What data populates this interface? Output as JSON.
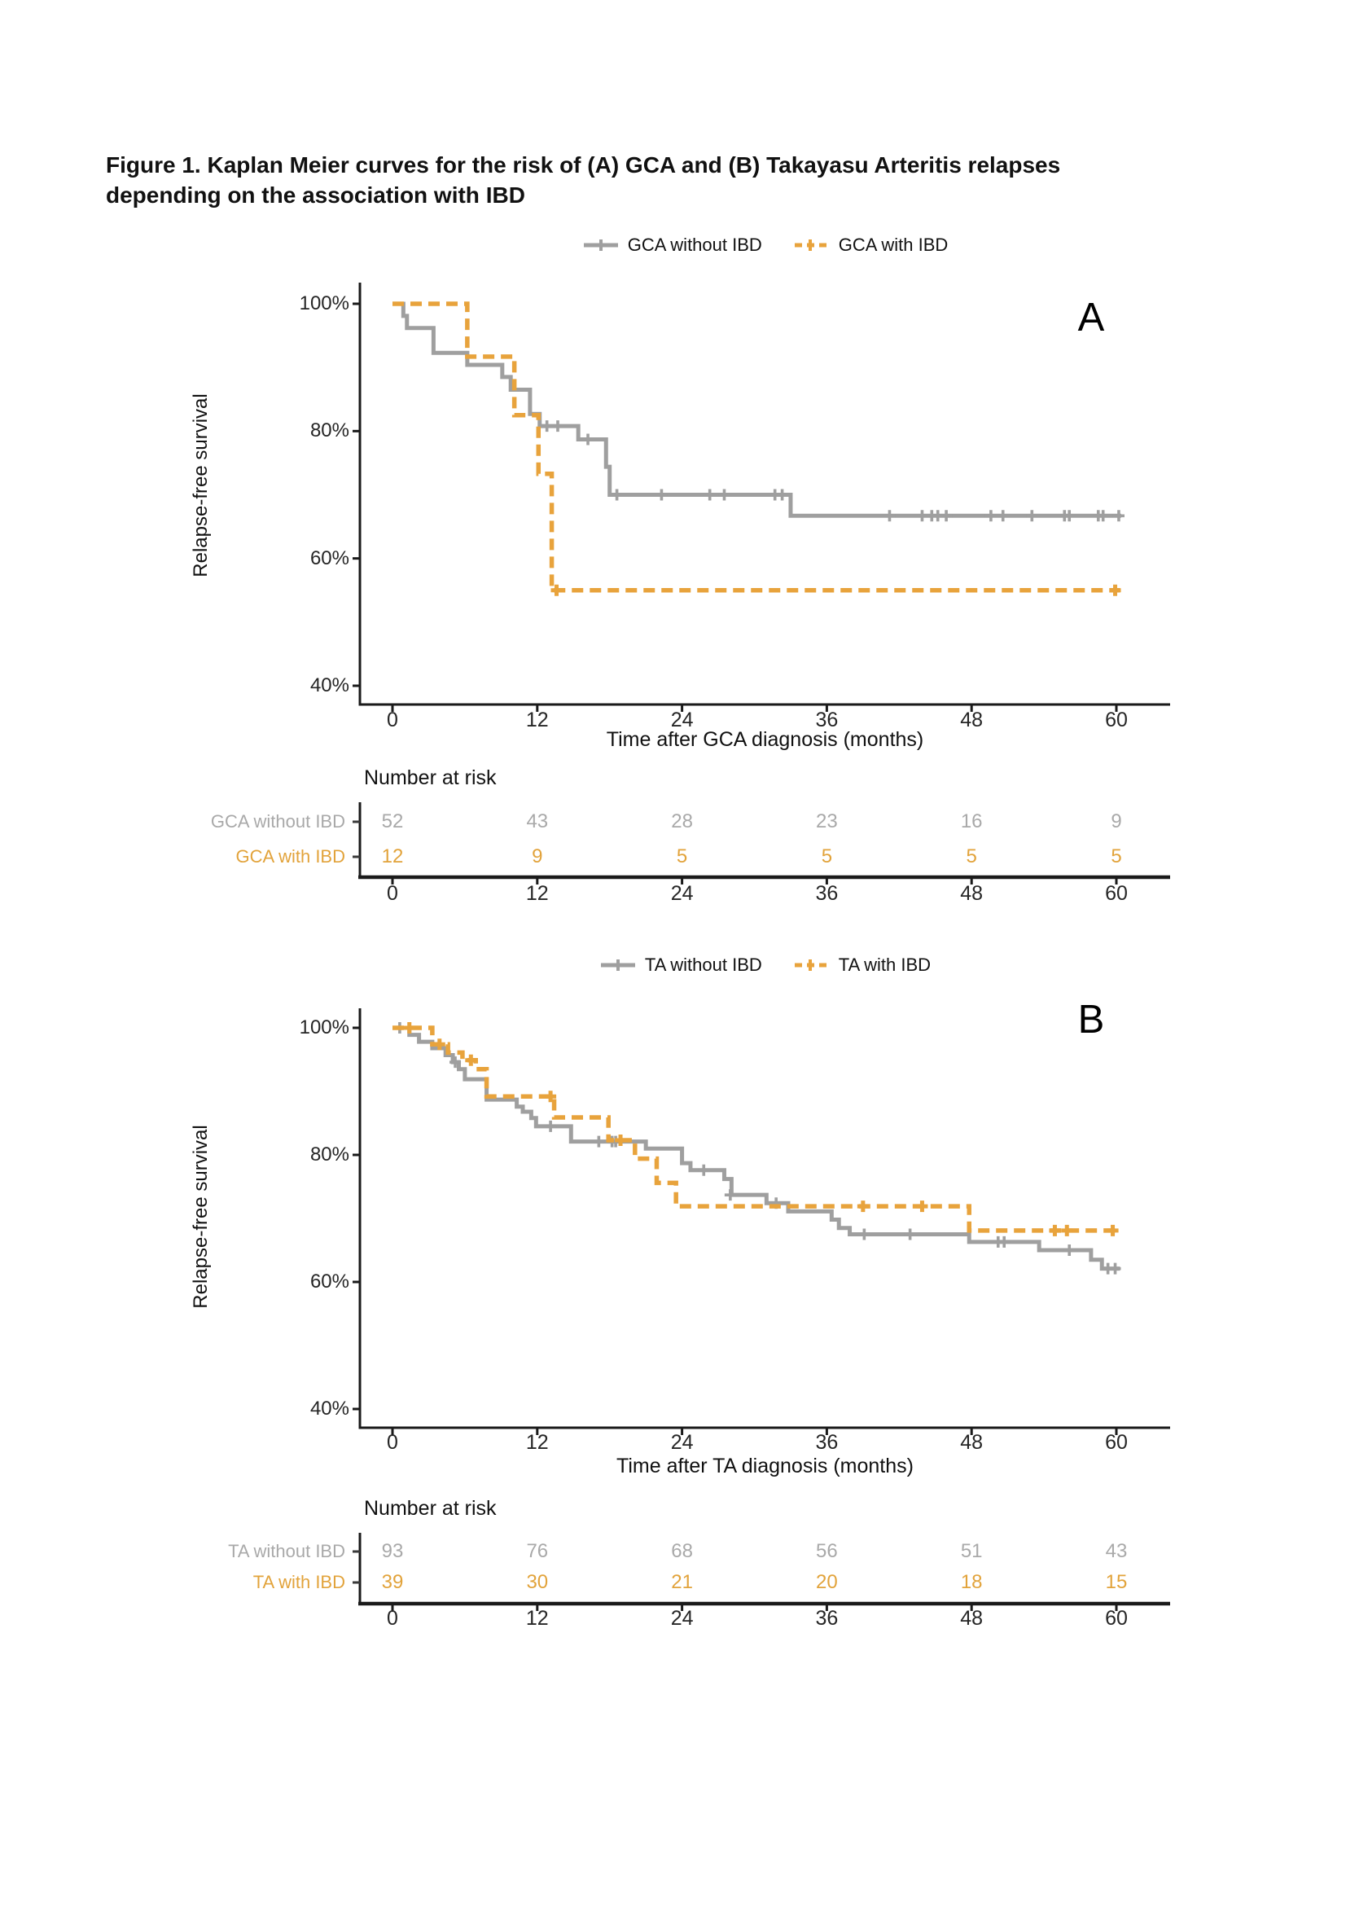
{
  "title": {
    "line1": "Figure 1. Kaplan Meier curves for the risk of (A) GCA and (B) Takayasu Arteritis relapses",
    "line2": "depending on the association with IBD"
  },
  "colors": {
    "axis": "#1a1a1a",
    "tick_label": "#262626",
    "background": "#ffffff",
    "gray_curve": "#9f9f9f",
    "orange_curve": "#E8A33C"
  },
  "chart_data": [
    {
      "type": "line",
      "subtype": "kaplan-meier-step",
      "panel_label": "A",
      "xlabel": "Time after GCA diagnosis (months)",
      "ylabel": "Relapse-free survival",
      "xlim": [
        0,
        60
      ],
      "ylim": [
        40,
        100
      ],
      "grid": false,
      "legend_position": "top",
      "x_ticks": [
        {
          "value": 0,
          "label": "0"
        },
        {
          "value": 12,
          "label": "12"
        },
        {
          "value": 24,
          "label": "24"
        },
        {
          "value": 36,
          "label": "36"
        },
        {
          "value": 48,
          "label": "48"
        },
        {
          "value": 60,
          "label": "60"
        }
      ],
      "y_ticks": [
        {
          "value": 100,
          "label": "100%"
        },
        {
          "value": 80,
          "label": "80%"
        },
        {
          "value": 60,
          "label": "60%"
        },
        {
          "value": 40,
          "label": "40%"
        }
      ],
      "series": [
        {
          "name": "GCA without IBD",
          "color": "#9f9f9f",
          "line": "solid",
          "steps": [
            [
              0,
              100
            ],
            [
              0.9,
              98.1
            ],
            [
              1.2,
              96.2
            ],
            [
              3.4,
              92.3
            ],
            [
              6.2,
              90.4
            ],
            [
              9.1,
              88.5
            ],
            [
              9.8,
              86.5
            ],
            [
              11.4,
              82.7
            ],
            [
              12.2,
              80.8
            ],
            [
              15.4,
              78.7
            ],
            [
              17.7,
              74.4
            ],
            [
              18.0,
              70.0
            ],
            [
              33,
              66.7
            ]
          ],
          "end_x": 60.4,
          "censors": [
            [
              12.8,
              80.8
            ],
            [
              13.7,
              80.8
            ],
            [
              16.2,
              78.7
            ],
            [
              18.6,
              70.0
            ],
            [
              22.3,
              70.0
            ],
            [
              26.3,
              70.0
            ],
            [
              27.5,
              70.0
            ],
            [
              31.7,
              70.0
            ],
            [
              32.3,
              70.0
            ],
            [
              41.2,
              66.7
            ],
            [
              43.9,
              66.7
            ],
            [
              44.7,
              66.7
            ],
            [
              45.2,
              66.7
            ],
            [
              45.9,
              66.7
            ],
            [
              49.6,
              66.7
            ],
            [
              50.6,
              66.7
            ],
            [
              53.0,
              66.7
            ],
            [
              55.7,
              66.7
            ],
            [
              56.1,
              66.7
            ],
            [
              58.5,
              66.7
            ],
            [
              58.9,
              66.7
            ],
            [
              60.2,
              66.7
            ]
          ]
        },
        {
          "name": "GCA with IBD",
          "color": "#E8A33C",
          "line": "dashed",
          "steps": [
            [
              0,
              100
            ],
            [
              6.2,
              91.7
            ],
            [
              10.1,
              82.5
            ],
            [
              12.1,
              73.3
            ],
            [
              13.2,
              55.0
            ]
          ],
          "end_x": 60.3,
          "censors": [
            [
              13.6,
              55.0
            ],
            [
              59.9,
              55.0
            ]
          ]
        }
      ],
      "at_risk": {
        "title": "Number at risk",
        "rows": [
          {
            "label": "GCA without IBD",
            "color": "#a9a9a9",
            "values": [
              "52",
              "43",
              "28",
              "23",
              "16",
              "9"
            ]
          },
          {
            "label": "GCA with IBD",
            "color": "#E2A33B",
            "values": [
              "12",
              "9",
              "5",
              "5",
              "5",
              "5"
            ]
          }
        ]
      }
    },
    {
      "type": "line",
      "subtype": "kaplan-meier-step",
      "panel_label": "B",
      "xlabel": "Time after TA diagnosis (months)",
      "ylabel": "Relapse-free survival",
      "xlim": [
        0,
        60
      ],
      "ylim": [
        40,
        100
      ],
      "grid": false,
      "legend_position": "top",
      "x_ticks": [
        {
          "value": 0,
          "label": "0"
        },
        {
          "value": 12,
          "label": "12"
        },
        {
          "value": 24,
          "label": "24"
        },
        {
          "value": 36,
          "label": "36"
        },
        {
          "value": 48,
          "label": "48"
        },
        {
          "value": 60,
          "label": "60"
        }
      ],
      "y_ticks": [
        {
          "value": 100,
          "label": "100%"
        },
        {
          "value": 80,
          "label": "80%"
        },
        {
          "value": 60,
          "label": "60%"
        },
        {
          "value": 40,
          "label": "40%"
        }
      ],
      "series": [
        {
          "name": "TA without IBD",
          "color": "#9f9f9f",
          "line": "solid",
          "steps": [
            [
              0,
              100
            ],
            [
              1.4,
              98.9
            ],
            [
              2.2,
              97.8
            ],
            [
              3.3,
              96.8
            ],
            [
              4.4,
              95.7
            ],
            [
              5.0,
              94.6
            ],
            [
              5.5,
              93.5
            ],
            [
              6.0,
              91.9
            ],
            [
              7.8,
              88.7
            ],
            [
              10.3,
              87.6
            ],
            [
              10.8,
              86.8
            ],
            [
              11.5,
              85.8
            ],
            [
              11.9,
              84.5
            ],
            [
              14.8,
              82.1
            ],
            [
              21.0,
              81.0
            ],
            [
              24.0,
              78.7
            ],
            [
              24.7,
              77.6
            ],
            [
              27.5,
              76.2
            ],
            [
              28.1,
              73.7
            ],
            [
              31.0,
              72.4
            ],
            [
              32.8,
              71.1
            ],
            [
              36.4,
              69.8
            ],
            [
              37.0,
              68.5
            ],
            [
              37.9,
              67.5
            ],
            [
              47.8,
              66.3
            ],
            [
              53.6,
              65.0
            ],
            [
              57.9,
              63.5
            ],
            [
              58.8,
              62.1
            ]
          ],
          "end_x": 60.3,
          "censors": [
            [
              0.6,
              100
            ],
            [
              5.2,
              94.6
            ],
            [
              13.1,
              84.5
            ],
            [
              17.1,
              82.1
            ],
            [
              18.2,
              82.1
            ],
            [
              18.5,
              82.1
            ],
            [
              25.8,
              77.6
            ],
            [
              28.0,
              73.7
            ],
            [
              31.8,
              72.4
            ],
            [
              39.1,
              67.5
            ],
            [
              42.9,
              67.5
            ],
            [
              50.2,
              66.3
            ],
            [
              50.7,
              66.3
            ],
            [
              56.1,
              65.0
            ],
            [
              59.3,
              62.1
            ],
            [
              59.9,
              62.1
            ]
          ]
        },
        {
          "name": "TA with IBD",
          "color": "#E8A33C",
          "line": "dashed",
          "steps": [
            [
              0,
              100
            ],
            [
              3.3,
              97.4
            ],
            [
              4.6,
              96.1
            ],
            [
              5.8,
              94.9
            ],
            [
              6.9,
              93.5
            ],
            [
              7.8,
              89.2
            ],
            [
              13.4,
              85.9
            ],
            [
              17.9,
              82.3
            ],
            [
              20.1,
              79.4
            ],
            [
              21.9,
              75.6
            ],
            [
              23.5,
              71.9
            ],
            [
              47.8,
              68.1
            ]
          ],
          "end_x": 60.2,
          "censors": [
            [
              1.4,
              100
            ],
            [
              3.9,
              97.4
            ],
            [
              6.5,
              94.9
            ],
            [
              13.1,
              89.2
            ],
            [
              18.9,
              82.3
            ],
            [
              39.0,
              71.9
            ],
            [
              43.9,
              71.9
            ],
            [
              54.9,
              68.1
            ],
            [
              55.9,
              68.1
            ],
            [
              59.7,
              68.1
            ]
          ]
        }
      ],
      "at_risk": {
        "title": "Number at risk",
        "rows": [
          {
            "label": "TA without IBD",
            "color": "#a9a9a9",
            "values": [
              "93",
              "76",
              "68",
              "56",
              "51",
              "43"
            ]
          },
          {
            "label": "TA with IBD",
            "color": "#E2A33B",
            "values": [
              "39",
              "30",
              "21",
              "20",
              "18",
              "15"
            ]
          }
        ]
      }
    }
  ]
}
